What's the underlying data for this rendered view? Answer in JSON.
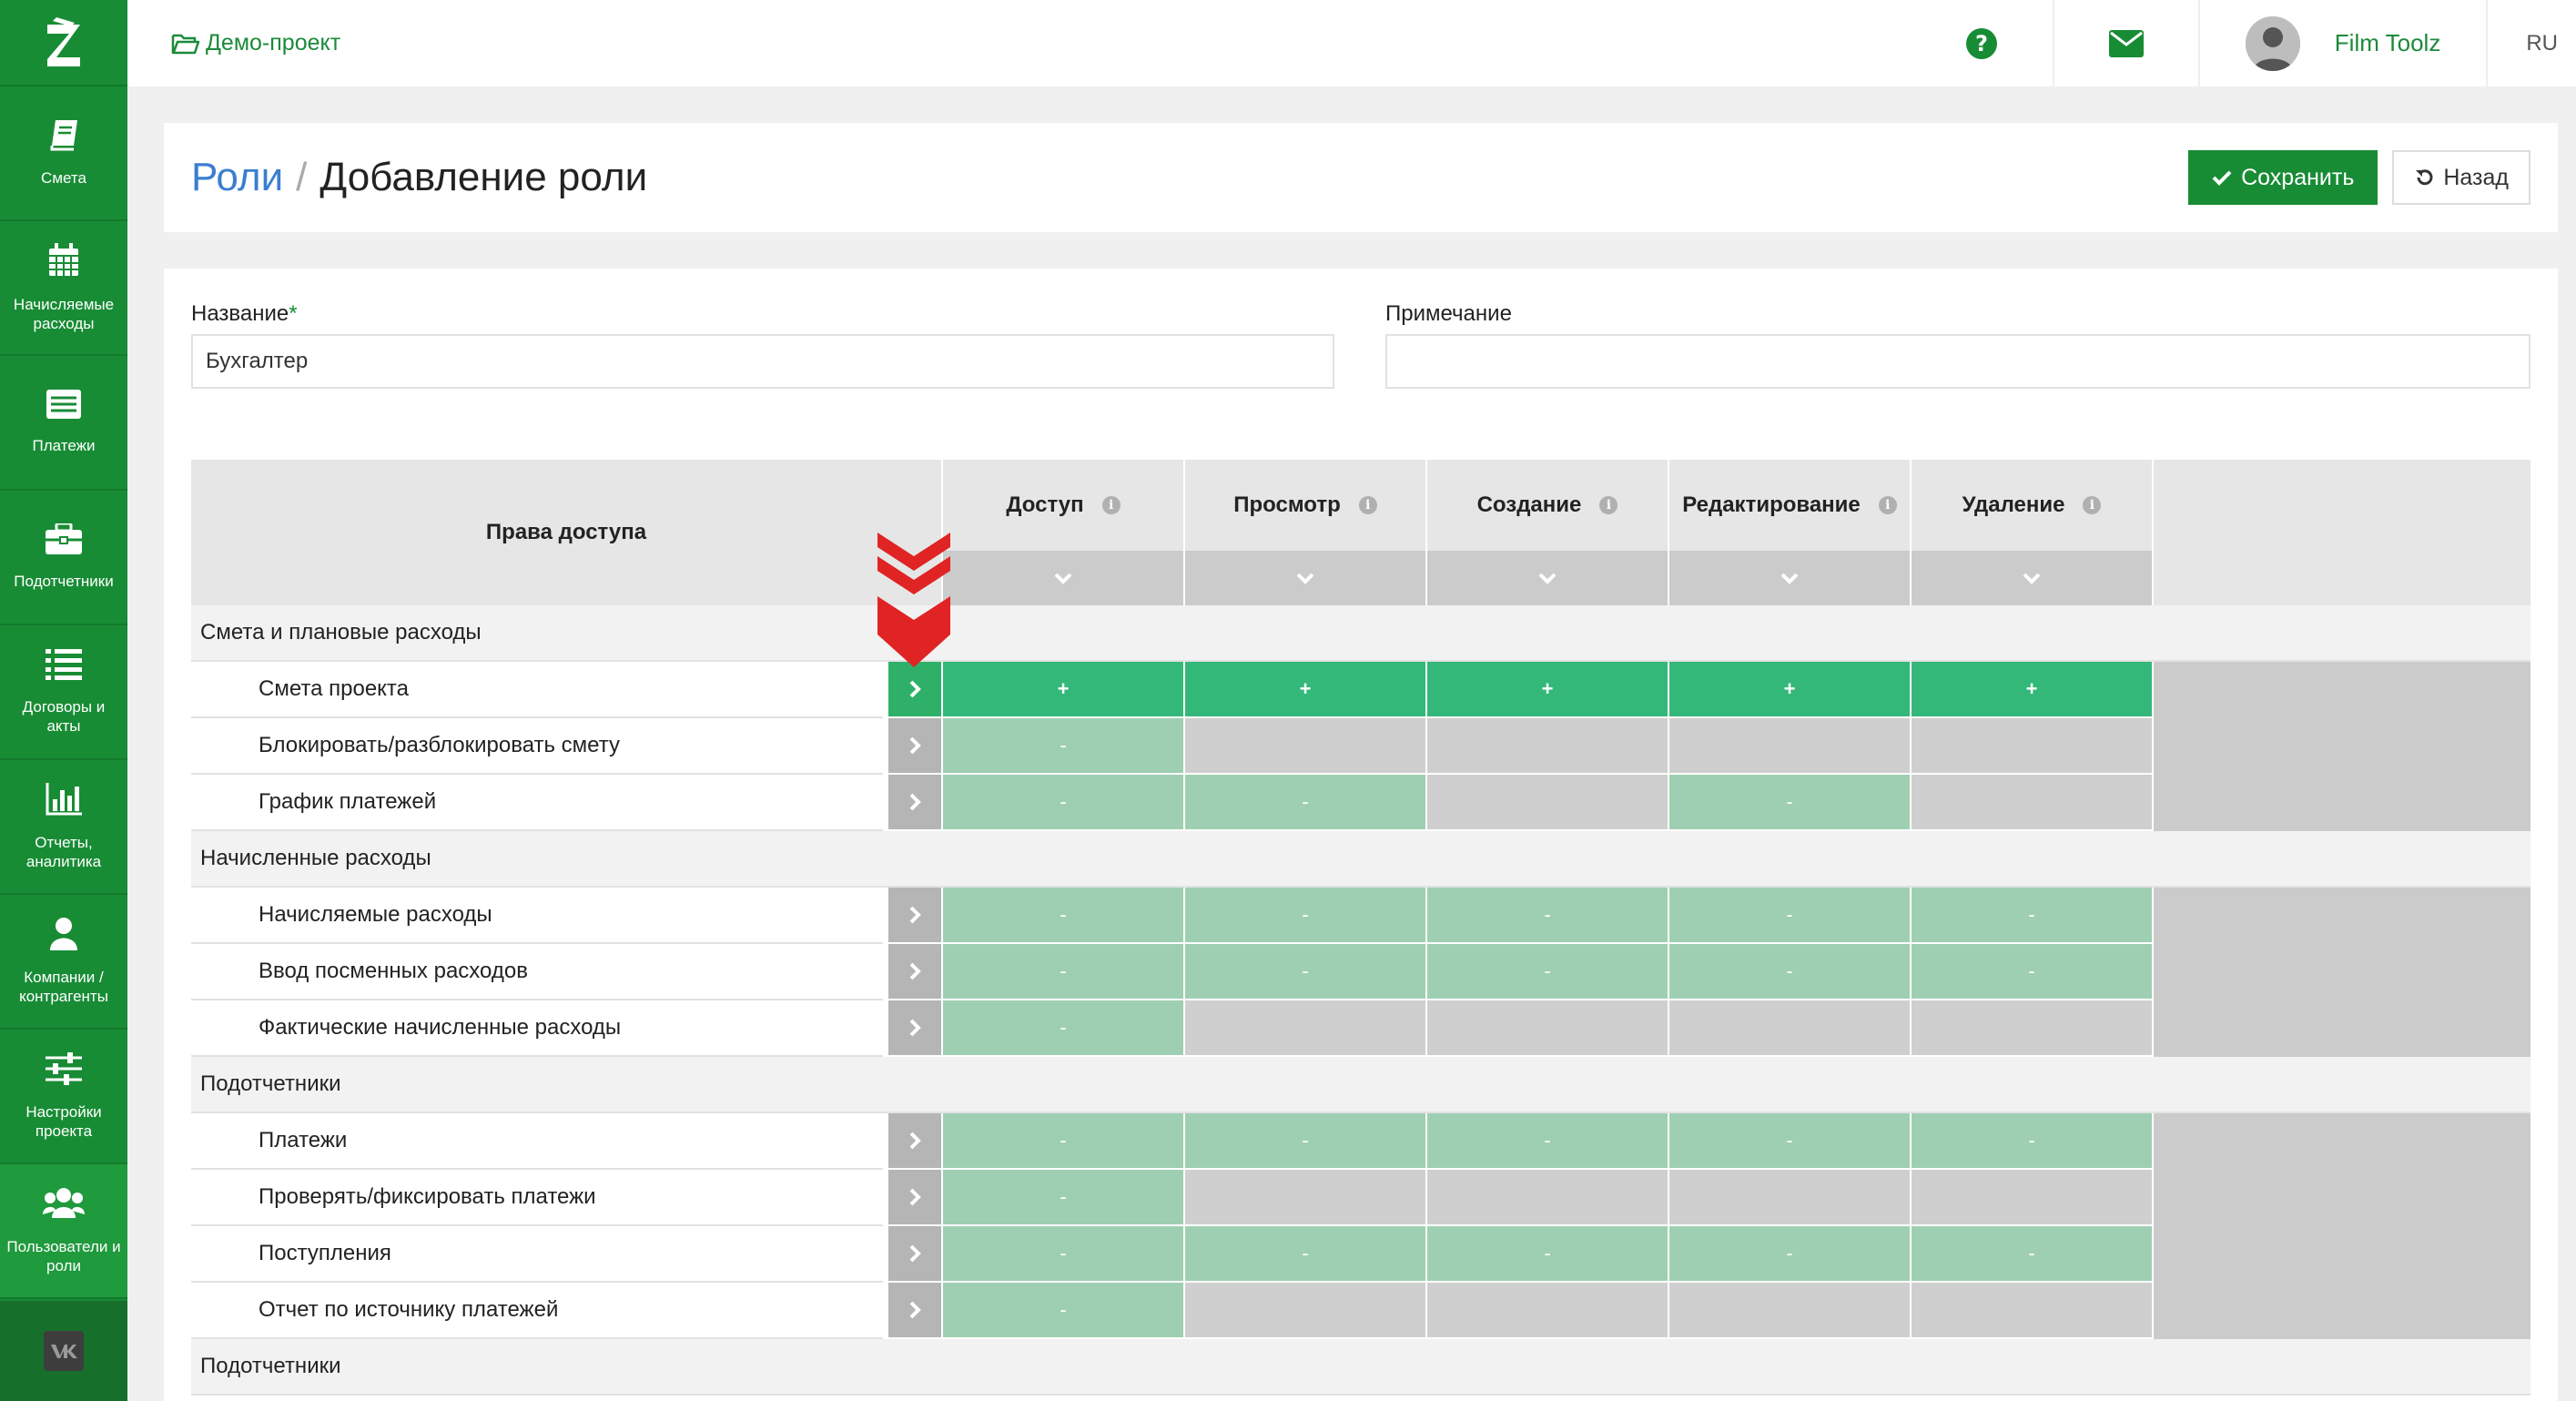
{
  "sidebar": {
    "items": [
      {
        "label": "Смета",
        "icon": "book-icon"
      },
      {
        "label": "Начисляемые\nрасходы",
        "icon": "calendar-icon"
      },
      {
        "label": "Платежи",
        "icon": "list-icon"
      },
      {
        "label": "Подотчетники",
        "icon": "briefcase-icon"
      },
      {
        "label": "Договоры и\nакты",
        "icon": "list-bullets-icon"
      },
      {
        "label": "Отчеты,\nаналитика",
        "icon": "bar-chart-icon"
      },
      {
        "label": "Компании /\nконтрагенты",
        "icon": "user-icon"
      },
      {
        "label": "Настройки\nпроекта",
        "icon": "sliders-icon"
      },
      {
        "label": "Пользователи и\nроли",
        "icon": "users-icon"
      }
    ]
  },
  "topbar": {
    "project": "Демо-проект",
    "user_name": "Film Toolz",
    "lang": "RU"
  },
  "header": {
    "breadcrumb_link": "Роли",
    "separator": "/",
    "title": "Добавление роли",
    "save_label": "Сохранить",
    "back_label": "Назад"
  },
  "form": {
    "name_label": "Название",
    "name_required": "*",
    "name_value": "Бухгалтер",
    "note_label": "Примечание",
    "note_value": ""
  },
  "permissions": {
    "title": "Права доступа",
    "columns": [
      "Доступ",
      "Просмотр",
      "Создание",
      "Редактирование",
      "Удаление"
    ],
    "sections": [
      {
        "title": "Смета и плановые расходы",
        "rows": [
          {
            "name": "Смета проекта",
            "active": true,
            "cells": [
              "on",
              "on",
              "on",
              "on",
              "on"
            ],
            "values": [
              "+",
              "+",
              "+",
              "+",
              "+"
            ]
          },
          {
            "name": "Блокировать/разблокировать смету",
            "cells": [
              "lt",
              "off",
              "off",
              "off",
              "off"
            ],
            "values": [
              "-",
              "",
              "",
              "",
              ""
            ]
          },
          {
            "name": "График платежей",
            "cells": [
              "lt",
              "lt",
              "off",
              "lt",
              "off"
            ],
            "values": [
              "-",
              "-",
              "",
              "-",
              ""
            ]
          }
        ]
      },
      {
        "title": "Начисленные расходы",
        "rows": [
          {
            "name": "Начисляемые расходы",
            "cells": [
              "lt",
              "lt",
              "lt",
              "lt",
              "lt"
            ],
            "values": [
              "-",
              "-",
              "-",
              "-",
              "-"
            ]
          },
          {
            "name": "Ввод посменных расходов",
            "cells": [
              "lt",
              "lt",
              "lt",
              "lt",
              "lt"
            ],
            "values": [
              "-",
              "-",
              "-",
              "-",
              "-"
            ]
          },
          {
            "name": "Фактические начисленные расходы",
            "cells": [
              "lt",
              "off",
              "off",
              "off",
              "off"
            ],
            "values": [
              "-",
              "",
              "",
              "",
              ""
            ]
          }
        ]
      },
      {
        "title": "Подотчетники",
        "rows": [
          {
            "name": "Платежи",
            "cells": [
              "lt",
              "lt",
              "lt",
              "lt",
              "lt"
            ],
            "values": [
              "-",
              "-",
              "-",
              "-",
              "-"
            ]
          },
          {
            "name": "Проверять/фиксировать платежи",
            "cells": [
              "lt",
              "off",
              "off",
              "off",
              "off"
            ],
            "values": [
              "-",
              "",
              "",
              "",
              ""
            ]
          },
          {
            "name": "Поступления",
            "cells": [
              "lt",
              "lt",
              "lt",
              "lt",
              "lt"
            ],
            "values": [
              "-",
              "-",
              "-",
              "-",
              "-"
            ]
          },
          {
            "name": "Отчет по источнику платежей",
            "cells": [
              "lt",
              "off",
              "off",
              "off",
              "off"
            ],
            "values": [
              "-",
              "",
              "",
              "",
              ""
            ]
          }
        ]
      },
      {
        "title": "Подотчетники",
        "rows": []
      }
    ]
  },
  "colors": {
    "brand": "#188c35",
    "cell_on": "#34b87a",
    "cell_light": "#9fcfb2",
    "cell_off": "#cfcfcf",
    "marker": "#e02424"
  }
}
